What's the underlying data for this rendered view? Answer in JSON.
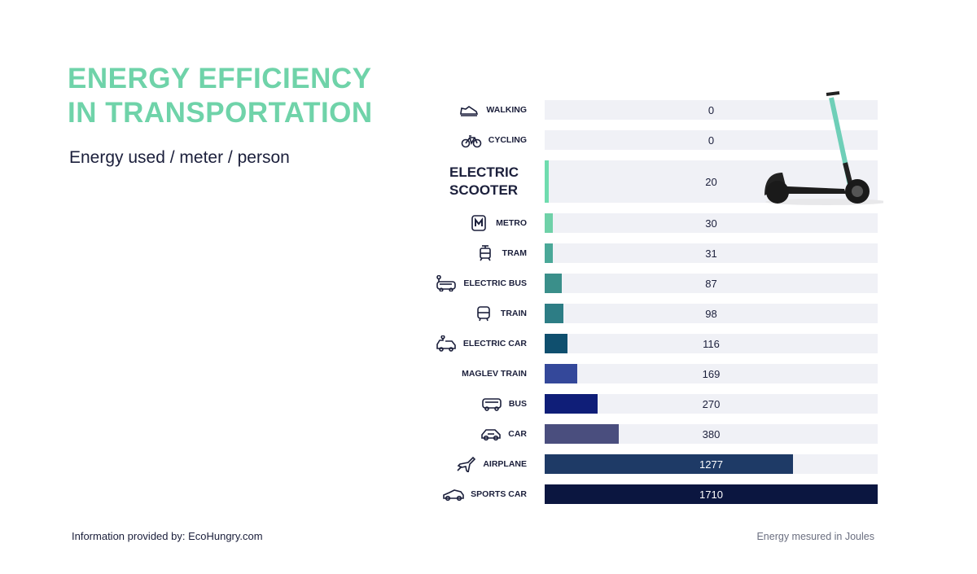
{
  "title_lines": [
    "ENERGY EFFICIENCY",
    "IN TRANSPORTATION"
  ],
  "subtitle": "Energy used / meter / person",
  "footer_source": "Information provided by: EcoHungry.com",
  "footer_unit": "Energy mesured in Joules",
  "chart_data": {
    "type": "bar",
    "orientation": "horizontal",
    "title": "ENERGY EFFICIENCY IN TRANSPORTATION",
    "subtitle": "Energy used / meter / person",
    "unit_note": "Energy mesured in Joules",
    "xlim": [
      0,
      1710
    ],
    "grid": false,
    "categories": [
      "WALKING",
      "CYCLING",
      "ELECTRIC SCOOTER",
      "METRO",
      "TRAM",
      "ELECTRIC BUS",
      "TRAIN",
      "ELECTRIC CAR",
      "MAGLEV TRAIN",
      "BUS",
      "CAR",
      "AIRPLANE",
      "SPORTS CAR"
    ],
    "values": [
      0,
      0,
      20,
      30,
      31,
      87,
      98,
      116,
      169,
      270,
      380,
      1277,
      1710
    ],
    "value_labels": [
      "0",
      "0",
      "20",
      "30",
      "31",
      "87",
      "98",
      "116",
      "169",
      "270",
      "380",
      "1277",
      "1710"
    ],
    "icons": [
      "shoe-icon",
      "bicycle-icon",
      "",
      "metro-icon",
      "tram-icon",
      "electric-bus-icon",
      "train-icon",
      "electric-car-icon",
      "",
      "bus-icon",
      "car-icon",
      "airplane-icon",
      "sports-car-icon"
    ],
    "colors": [
      "#6fdcae",
      "#6fdcae",
      "#6fdcae",
      "#6fd1a8",
      "#4aa898",
      "#3a8f8a",
      "#2d7d85",
      "#0f4f6e",
      "#34489a",
      "#0f1e78",
      "#4a4e7e",
      "#1e3a66",
      "#0b1640"
    ],
    "highlight": "ELECTRIC SCOOTER"
  },
  "colors": {
    "title": "#6fd3a9",
    "text": "#1b1f3b",
    "track": "#f0f1f6"
  }
}
